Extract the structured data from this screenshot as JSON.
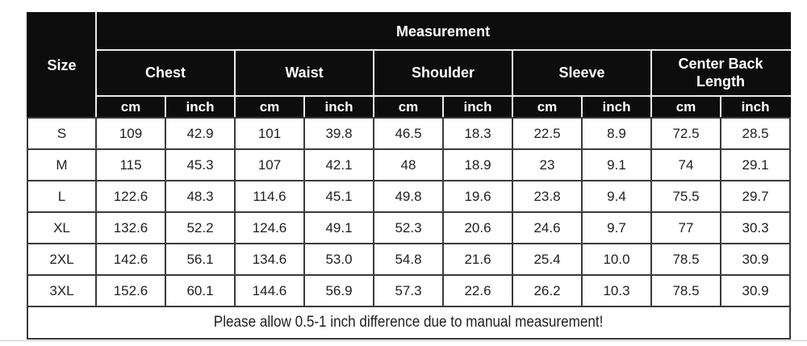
{
  "table": {
    "corner_header": "Size",
    "measurement_header": "Measurement",
    "categories": [
      "Chest",
      "Waist",
      "Shoulder",
      "Sleeve",
      "Center Back Length"
    ],
    "unit_row": [
      "cm",
      "inch",
      "cm",
      "inch",
      "cm",
      "inch",
      "cm",
      "inch",
      "cm",
      "inch"
    ],
    "rows": [
      {
        "size": "S",
        "values": [
          "109",
          "42.9",
          "101",
          "39.8",
          "46.5",
          "18.3",
          "22.5",
          "8.9",
          "72.5",
          "28.5"
        ]
      },
      {
        "size": "M",
        "values": [
          "115",
          "45.3",
          "107",
          "42.1",
          "48",
          "18.9",
          "23",
          "9.1",
          "74",
          "29.1"
        ]
      },
      {
        "size": "L",
        "values": [
          "122.6",
          "48.3",
          "114.6",
          "45.1",
          "49.8",
          "19.6",
          "23.8",
          "9.4",
          "75.5",
          "29.7"
        ]
      },
      {
        "size": "XL",
        "values": [
          "132.6",
          "52.2",
          "124.6",
          "49.1",
          "52.3",
          "20.6",
          "24.6",
          "9.7",
          "77",
          "30.3"
        ]
      },
      {
        "size": "2XL",
        "values": [
          "142.6",
          "56.1",
          "134.6",
          "53.0",
          "54.8",
          "21.6",
          "25.4",
          "10.0",
          "78.5",
          "30.9"
        ]
      },
      {
        "size": "3XL",
        "values": [
          "152.6",
          "60.1",
          "144.6",
          "56.9",
          "57.3",
          "22.6",
          "26.2",
          "10.3",
          "78.5",
          "30.9"
        ]
      }
    ],
    "footer_note": "Please allow 0.5-1 inch difference due to manual measurement!"
  },
  "chart_data": {
    "type": "table",
    "title": "Measurement",
    "row_labels": [
      "S",
      "M",
      "L",
      "XL",
      "2XL",
      "3XL"
    ],
    "columns": [
      "Chest cm",
      "Chest inch",
      "Waist cm",
      "Waist inch",
      "Shoulder cm",
      "Shoulder inch",
      "Sleeve cm",
      "Sleeve inch",
      "Center Back Length cm",
      "Center Back Length inch"
    ],
    "values": [
      [
        109,
        42.9,
        101,
        39.8,
        46.5,
        18.3,
        22.5,
        8.9,
        72.5,
        28.5
      ],
      [
        115,
        45.3,
        107,
        42.1,
        48,
        18.9,
        23,
        9.1,
        74,
        29.1
      ],
      [
        122.6,
        48.3,
        114.6,
        45.1,
        49.8,
        19.6,
        23.8,
        9.4,
        75.5,
        29.7
      ],
      [
        132.6,
        52.2,
        124.6,
        49.1,
        52.3,
        20.6,
        24.6,
        9.7,
        77,
        30.3
      ],
      [
        142.6,
        56.1,
        134.6,
        53.0,
        54.8,
        21.6,
        25.4,
        10.0,
        78.5,
        30.9
      ],
      [
        152.6,
        60.1,
        144.6,
        56.9,
        57.3,
        22.6,
        26.2,
        10.3,
        78.5,
        30.9
      ]
    ],
    "note": "Please allow 0.5-1 inch difference due to manual measurement!"
  },
  "colors": {
    "header_bg": "#0d0d0d",
    "header_text": "#ffffff",
    "header_divider": "#ededed",
    "data_border": "#3a3a3a",
    "data_text": "#1f1f1f",
    "page_bg": "#ffffff",
    "bottom_rule": "#c9c9c9"
  }
}
